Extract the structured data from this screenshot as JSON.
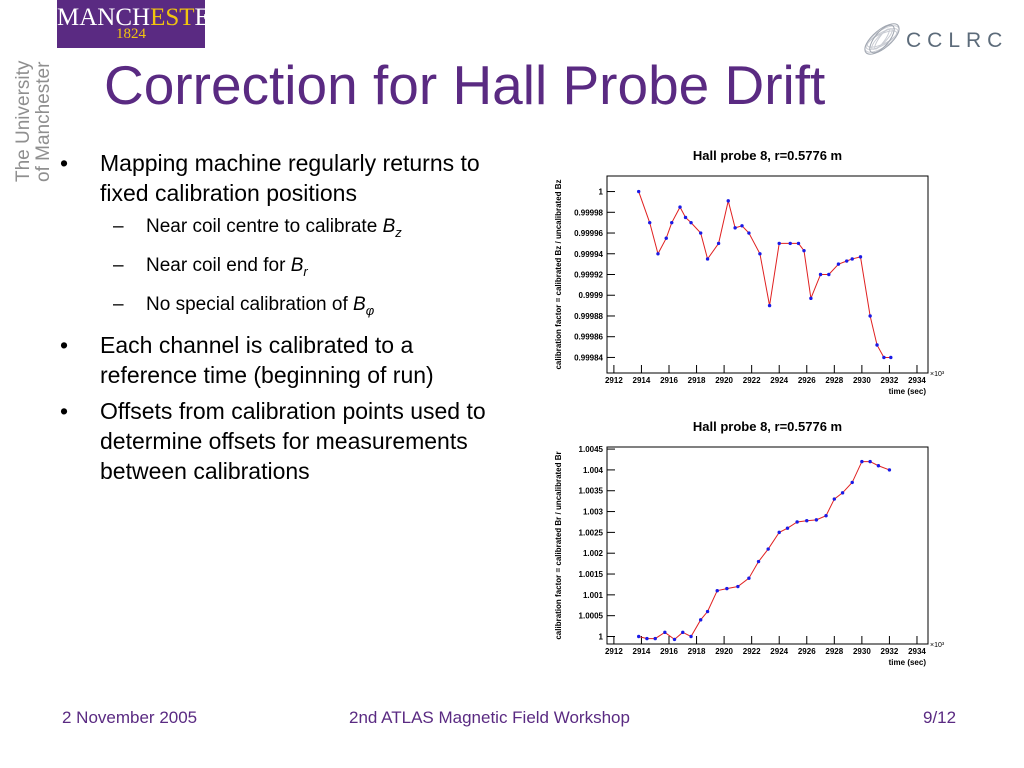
{
  "logos": {
    "manchester_name_a": "MANCH",
    "manchester_name_b": "EST",
    "manchester_name_c": "ER",
    "manchester_year": "1824",
    "university_line1": "The University",
    "university_line2": "of Manchester",
    "cclrc_text": "CCLRC"
  },
  "slide": {
    "title": "Correction for Hall Probe Drift",
    "bullets": [
      {
        "text": "Mapping machine regularly returns to fixed calibration positions"
      },
      {
        "text": "Each channel is calibrated to a reference time (beginning of run)"
      },
      {
        "text": "Offsets from calibration points used to determine offsets for measurements between calibrations"
      }
    ],
    "subbullets": [
      {
        "prefix": "Near coil centre to calibrate ",
        "symbol": "B",
        "sub": "z"
      },
      {
        "prefix": "Near coil end for ",
        "symbol": "B",
        "sub": "r"
      },
      {
        "prefix": "No special calibration of ",
        "symbol": "B",
        "sub": "φ"
      }
    ]
  },
  "footer": {
    "date": "2 November 2005",
    "event": "2nd ATLAS Magnetic Field Workshop",
    "page": "9/12"
  },
  "colors": {
    "accent": "#5a2a82",
    "series_marker": "#1a1ae6",
    "series_line": "#e02020"
  },
  "chart_data": [
    {
      "type": "line",
      "title": "Hall probe 8, r=0.5776 m",
      "xlabel": "time (sec)",
      "x_exponent_label": "×10³",
      "ylabel": "calibration factor = calibrated Bz / uncalibrated Bz",
      "xlim": [
        2911.5,
        2934.8
      ],
      "ylim": [
        0.999825,
        1.000015
      ],
      "x_ticks": [
        2912,
        2914,
        2916,
        2918,
        2920,
        2922,
        2924,
        2926,
        2928,
        2930,
        2932,
        2934
      ],
      "x_tick_labels": [
        "2912",
        "2914",
        "2916",
        "2918",
        "2920",
        "2922",
        "2924",
        "2926",
        "2928",
        "2930",
        "2932",
        "2934"
      ],
      "y_ticks": [
        1.0,
        0.99998,
        0.99996,
        0.99994,
        0.99992,
        0.9999,
        0.99988,
        0.99986,
        0.99984
      ],
      "y_tick_labels": [
        "1",
        "0.99998",
        "0.99996",
        "0.99994",
        "0.99992",
        "0.9999",
        "0.99988",
        "0.99986",
        "0.99984"
      ],
      "grid": false,
      "series": [
        {
          "x": [
            2913.8,
            2914.6,
            2915.2,
            2915.8,
            2916.2,
            2916.8,
            2917.2,
            2917.6,
            2918.3,
            2918.8,
            2919.6,
            2920.3,
            2920.8,
            2921.3,
            2921.8,
            2922.6,
            2923.3,
            2924.0,
            2924.8,
            2925.4,
            2925.8,
            2926.3,
            2927.0,
            2927.6,
            2928.3,
            2928.9,
            2929.3,
            2929.9,
            2930.6,
            2931.1,
            2931.6,
            2932.1
          ],
          "y": [
            1.0,
            0.99997,
            0.99994,
            0.999955,
            0.99997,
            0.999985,
            0.999975,
            0.99997,
            0.99996,
            0.999935,
            0.99995,
            0.999991,
            0.999965,
            0.999967,
            0.99996,
            0.99994,
            0.99989,
            0.99995,
            0.99995,
            0.99995,
            0.999943,
            0.999897,
            0.99992,
            0.99992,
            0.99993,
            0.999933,
            0.999935,
            0.999937,
            0.99988,
            0.999852,
            0.99984,
            0.99984
          ]
        }
      ]
    },
    {
      "type": "line",
      "title": "Hall probe 8, r=0.5776 m",
      "xlabel": "time (sec)",
      "x_exponent_label": "×10³",
      "ylabel": "calibration factor = calibrated Br / uncalibrated Br",
      "xlim": [
        2911.5,
        2934.8
      ],
      "ylim": [
        0.99982,
        1.00455
      ],
      "x_ticks": [
        2912,
        2914,
        2916,
        2918,
        2920,
        2922,
        2924,
        2926,
        2928,
        2930,
        2932,
        2934
      ],
      "x_tick_labels": [
        "2912",
        "2914",
        "2916",
        "2918",
        "2920",
        "2922",
        "2924",
        "2926",
        "2928",
        "2930",
        "2932",
        "2934"
      ],
      "y_ticks": [
        1.0,
        1.0005,
        1.001,
        1.0015,
        1.002,
        1.0025,
        1.003,
        1.0035,
        1.004,
        1.0045
      ],
      "y_tick_labels": [
        "1",
        "1.0005",
        "1.001",
        "1.0015",
        "1.002",
        "1.0025",
        "1.003",
        "1.0035",
        "1.004",
        "1.0045"
      ],
      "grid": false,
      "series": [
        {
          "x": [
            2913.8,
            2914.4,
            2915.0,
            2915.7,
            2916.4,
            2917.0,
            2917.6,
            2918.3,
            2918.8,
            2919.5,
            2920.2,
            2921.0,
            2921.8,
            2922.5,
            2923.2,
            2924.0,
            2924.6,
            2925.3,
            2926.0,
            2926.7,
            2927.4,
            2928.0,
            2928.6,
            2929.3,
            2930.0,
            2930.6,
            2931.2,
            2932.0
          ],
          "y": [
            1.0,
            0.99995,
            0.99995,
            1.0001,
            0.99993,
            1.0001,
            1.0,
            1.0004,
            1.0006,
            1.0011,
            1.00115,
            1.0012,
            1.0014,
            1.0018,
            1.0021,
            1.0025,
            1.0026,
            1.00275,
            1.00278,
            1.0028,
            1.0029,
            1.0033,
            1.00345,
            1.0037,
            1.0042,
            1.0042,
            1.0041,
            1.004
          ]
        }
      ]
    }
  ]
}
